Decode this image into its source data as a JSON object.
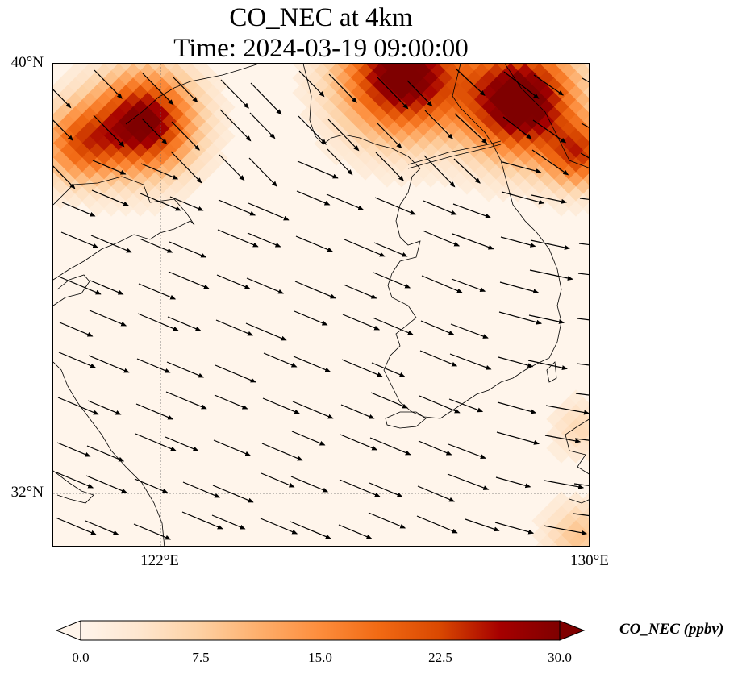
{
  "title": {
    "line1": "CO_NEC at 4km",
    "line2": "Time: 2024-03-19 09:00:00"
  },
  "axes": {
    "lat_ticks": [
      "40°N",
      "32°N"
    ],
    "lon_ticks": [
      "122°E",
      "130°E"
    ],
    "extent": {
      "lon_min": 120,
      "lon_max": 130,
      "lat_min": 31,
      "lat_max": 40
    },
    "gridlines": [
      {
        "lon": 122
      },
      {
        "lat": 32
      }
    ]
  },
  "colorbar": {
    "label": "CO_NEC (ppbv)",
    "ticks": [
      "0.0",
      "7.5",
      "15.0",
      "22.5",
      "30.0"
    ],
    "range": [
      0,
      30
    ],
    "extend": "both",
    "colormap": [
      "#fff5eb",
      "#fee6ce",
      "#fdd0a2",
      "#fdae6b",
      "#fd8d3c",
      "#f16913",
      "#d94801",
      "#a60000",
      "#7f0000"
    ]
  },
  "chart_data": {
    "type": "heatmap",
    "variable": "CO_NEC",
    "units": "ppbv",
    "vmin": 0,
    "vmax": 30,
    "hotspots": [
      {
        "lon": 121.7,
        "lat": 38.9,
        "value": 30,
        "spread": 0.9
      },
      {
        "lon": 120.5,
        "lat": 38.5,
        "value": 18,
        "spread": 0.7
      },
      {
        "lon": 126.5,
        "lat": 39.8,
        "value": 32,
        "spread": 1.1
      },
      {
        "lon": 128.7,
        "lat": 39.3,
        "value": 34,
        "spread": 1.0
      },
      {
        "lon": 129.8,
        "lat": 38.3,
        "value": 20,
        "spread": 0.6
      },
      {
        "lon": 129.8,
        "lat": 31.2,
        "value": 8,
        "spread": 0.6
      },
      {
        "lon": 129.8,
        "lat": 33.2,
        "value": 5,
        "spread": 0.5
      }
    ],
    "background_value": 0.8,
    "wind": {
      "mean_u": 1.0,
      "mean_v": -0.42
    }
  }
}
